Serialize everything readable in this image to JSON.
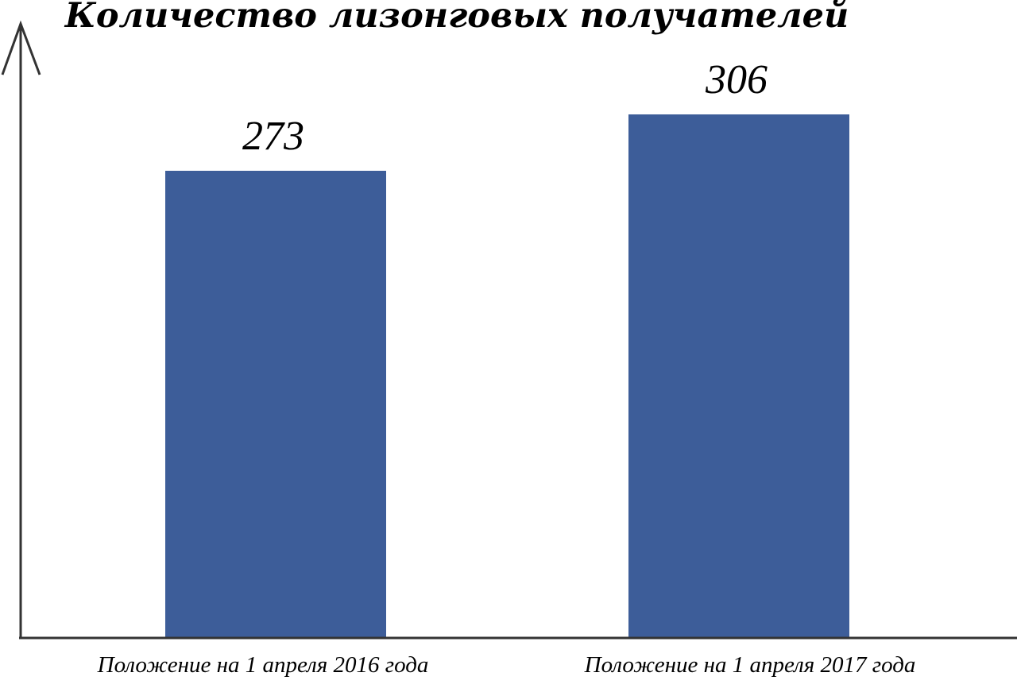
{
  "chart_data": {
    "type": "bar",
    "title": "Количество лизонговых получателей",
    "categories": [
      "Положение на 1 апреля 2016 года",
      "Положение на 1 апреля 2017 года"
    ],
    "values": [
      273,
      306
    ],
    "data_labels": [
      "273",
      "306"
    ],
    "bar_color": "#3D5D99",
    "xlabel": "",
    "ylabel": "",
    "grid": false,
    "legend": "none"
  }
}
